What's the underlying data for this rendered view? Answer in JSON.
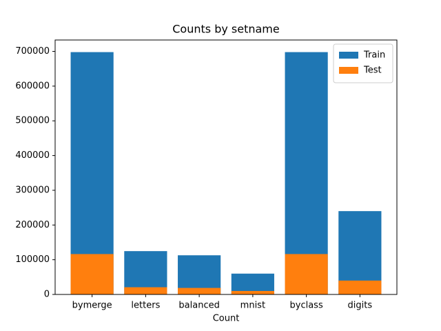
{
  "chart_data": {
    "type": "bar",
    "title": "Counts by setname",
    "x_label": "Count",
    "categories": [
      "bymerge",
      "letters",
      "balanced",
      "mnist",
      "byclass",
      "digits"
    ],
    "series": [
      {
        "name": "Train",
        "color": "#1f77b4",
        "values": [
          697932,
          124800,
          112800,
          60000,
          697932,
          240000
        ]
      },
      {
        "name": "Test",
        "color": "#ff7f0e",
        "values": [
          116323,
          20800,
          18800,
          10000,
          116323,
          40000
        ]
      }
    ],
    "ylim": [
      0,
      732829
    ],
    "yticks": [
      0,
      100000,
      200000,
      300000,
      400000,
      500000,
      600000,
      700000
    ],
    "legend": "upper right"
  }
}
